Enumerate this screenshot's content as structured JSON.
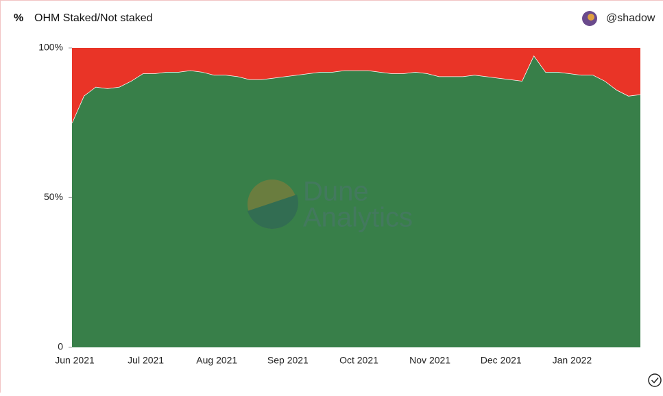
{
  "chart_data": {
    "type": "stacked-area",
    "icon": "%",
    "title": "OHM Staked/Not staked",
    "author": "@shadow",
    "watermark": [
      "Dune",
      "Analytics"
    ],
    "categories": [
      "Jun 2021",
      null,
      null,
      null,
      null,
      null,
      "Jul 2021",
      null,
      null,
      null,
      null,
      null,
      "Aug 2021",
      null,
      null,
      null,
      null,
      null,
      "Sep 2021",
      null,
      null,
      null,
      null,
      null,
      "Oct 2021",
      null,
      null,
      null,
      null,
      null,
      "Nov 2021",
      null,
      null,
      null,
      null,
      null,
      "Dec 2021",
      null,
      null,
      null,
      null,
      null,
      "Jan 2022",
      null,
      null,
      null,
      null,
      null,
      null
    ],
    "series": [
      {
        "color": "#387f49",
        "values": [
          75,
          84,
          87,
          86.5,
          87,
          89,
          91.5,
          91.5,
          92,
          92,
          92.5,
          92,
          91,
          91,
          90.5,
          89.5,
          89.5,
          90,
          90.5,
          91,
          91.5,
          92,
          92,
          92.5,
          92.5,
          92.5,
          92,
          91.5,
          91.5,
          92,
          91.5,
          90.5,
          90.5,
          90.5,
          91,
          90.5,
          90,
          89.5,
          89,
          97.5,
          92,
          92,
          91.5,
          91,
          91,
          89,
          86,
          84,
          84.5
        ]
      },
      {
        "color": "#e93427",
        "values": [
          25,
          16,
          13,
          13.5,
          13,
          11,
          8.5,
          8.5,
          8,
          8,
          7.5,
          8,
          9,
          9,
          9.5,
          10.5,
          10.5,
          10,
          9.5,
          9,
          8.5,
          8,
          8,
          7.5,
          7.5,
          7.5,
          8,
          8.5,
          8.5,
          8,
          8.5,
          9.5,
          9.5,
          9.5,
          9,
          9.5,
          10,
          10.5,
          11,
          2.5,
          8,
          8,
          8.5,
          9,
          9,
          11,
          14,
          16,
          15.5
        ]
      }
    ],
    "ylim": [
      0,
      100
    ],
    "yticks": [
      0,
      {
        "value": 50,
        "label": "50%"
      },
      {
        "value": 100,
        "label": "100%"
      }
    ]
  }
}
